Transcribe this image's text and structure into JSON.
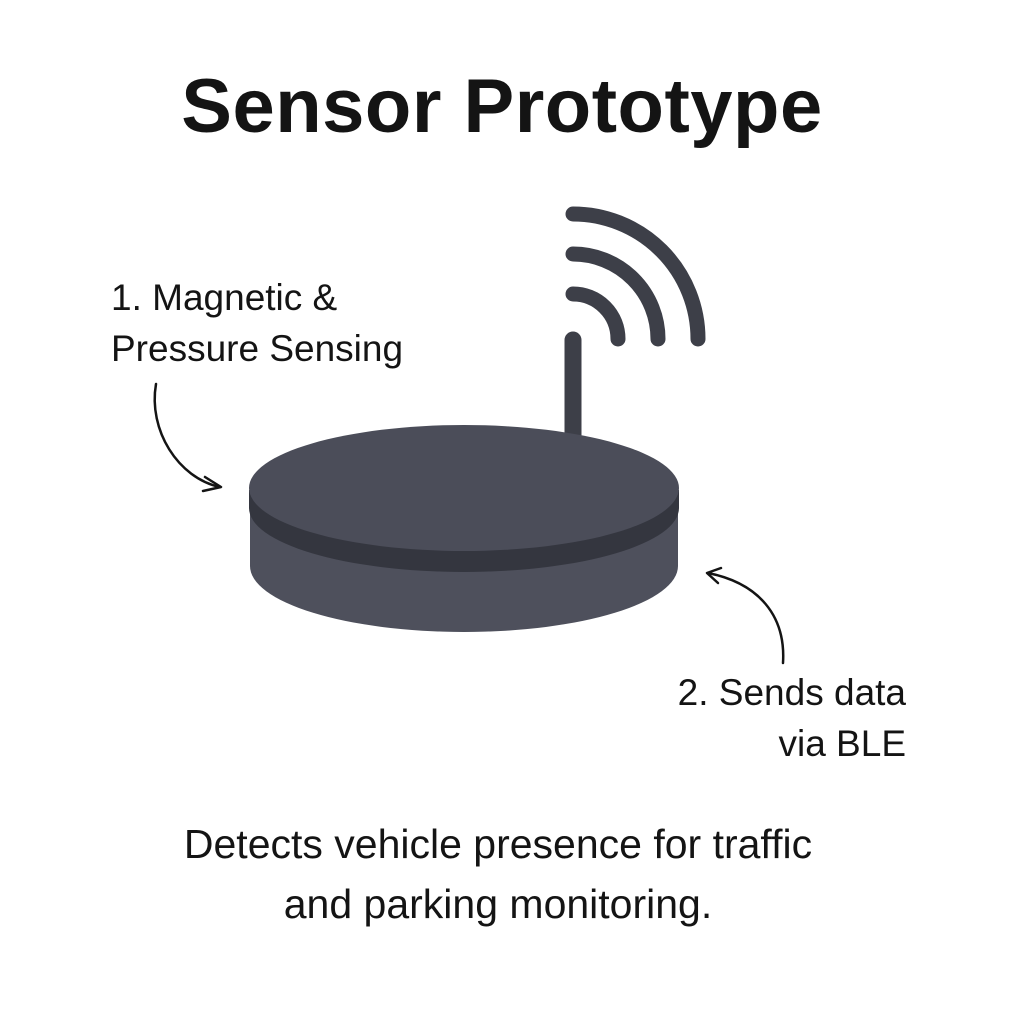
{
  "title": "Sensor Prototype",
  "callouts": [
    {
      "lines": [
        "1. Magnetic &",
        "Pressure Sensing"
      ]
    },
    {
      "lines": [
        "2. Sends data",
        "via BLE"
      ]
    }
  ],
  "caption": {
    "lines": [
      "Detects vehicle presence for traffic",
      "and parking monitoring."
    ]
  },
  "colors": {
    "device_body": "#4e505c",
    "device_top": "#4b4d59",
    "device_rim": "#34363f",
    "antenna": "#3d3f48",
    "signal_waves": "#3d3f48",
    "arrow": "#141414",
    "text": "#141414",
    "background": "#ffffff"
  },
  "icons": [
    "wireless-signal-icon",
    "antenna",
    "puck-sensor-device",
    "curved-arrow"
  ]
}
